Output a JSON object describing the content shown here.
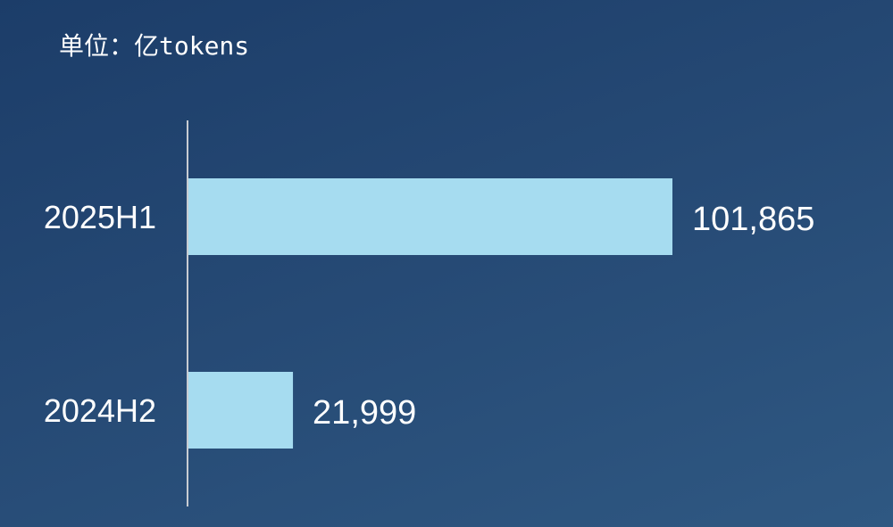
{
  "chart_data": {
    "type": "bar",
    "orientation": "horizontal",
    "unit_label": "单位：亿tokens",
    "categories": [
      "2025H1",
      "2024H2"
    ],
    "values": [
      101865,
      21999
    ],
    "data_labels": [
      "101,865",
      "21,999"
    ],
    "xlim": [
      0,
      101865
    ],
    "grid": false,
    "bar_color": "#a6dcf0",
    "text_color": "#ffffff"
  }
}
